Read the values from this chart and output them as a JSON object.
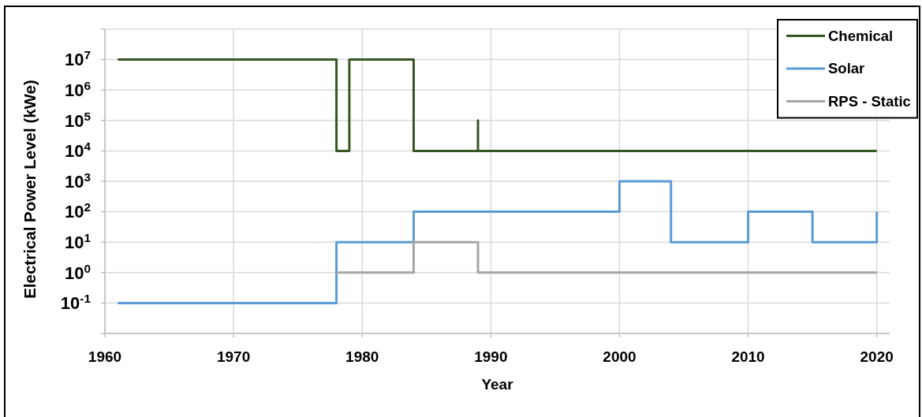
{
  "chart_data": {
    "type": "step",
    "xlabel": "Year",
    "ylabel": "Electrical Power Level (kWe)",
    "xlim": [
      1960,
      2021
    ],
    "xticks": [
      1960,
      1970,
      1980,
      1990,
      2000,
      2010,
      2020
    ],
    "ylim": [
      0.01,
      100000000
    ],
    "yticks": [
      {
        "value": 0.01,
        "label": null
      },
      {
        "value": 0.1,
        "label": "10$^{-1}$"
      },
      {
        "value": 1,
        "label": "10$^{0}$"
      },
      {
        "value": 10,
        "label": "10$^{1}$"
      },
      {
        "value": 100,
        "label": "10$^{2}$"
      },
      {
        "value": 1000,
        "label": "10$^{3}$"
      },
      {
        "value": 10000,
        "label": "10$^{4}$"
      },
      {
        "value": 100000,
        "label": "10$^{5}$"
      },
      {
        "value": 1000000,
        "label": "10$^{6}$"
      },
      {
        "value": 10000000,
        "label": "10$^{7}$"
      },
      {
        "value": 100000000,
        "label": null
      }
    ],
    "log": "y",
    "grid": true,
    "legend": "top right",
    "series": [
      {
        "name": "Chemical",
        "color": "#375623",
        "x": [
          1961,
          1978,
          1979,
          1984,
          1989,
          1989,
          2020
        ],
        "values": [
          10000000,
          10000,
          10000000,
          10000,
          100000,
          10000,
          10000
        ]
      },
      {
        "name": "Solar",
        "color": "#5b9bd5",
        "x": [
          1961,
          1978,
          1984,
          2000,
          2004,
          2010,
          2015,
          2020
        ],
        "values": [
          0.1,
          10,
          100,
          1000,
          10,
          100,
          10,
          100
        ]
      },
      {
        "name": "RPS - Static",
        "color": "#a5a5a5",
        "x": [
          1978,
          1984,
          1989,
          2020
        ],
        "values": [
          1,
          10,
          1,
          1
        ]
      }
    ]
  }
}
